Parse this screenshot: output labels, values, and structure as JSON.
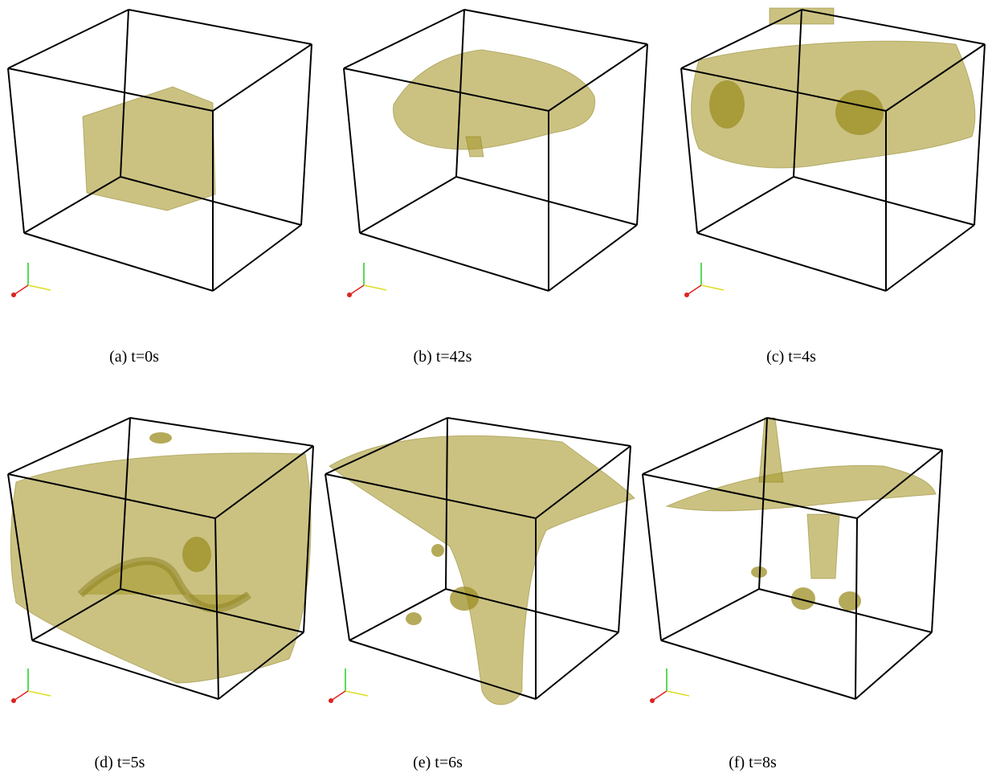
{
  "panels": [
    {
      "caption": "(a) t=0s"
    },
    {
      "caption": "(b) t=42s"
    },
    {
      "caption": "(c) t=4s"
    },
    {
      "caption": "(d) t=5s"
    },
    {
      "caption": "(e) t=6s"
    },
    {
      "caption": "(f) t=8s"
    }
  ]
}
